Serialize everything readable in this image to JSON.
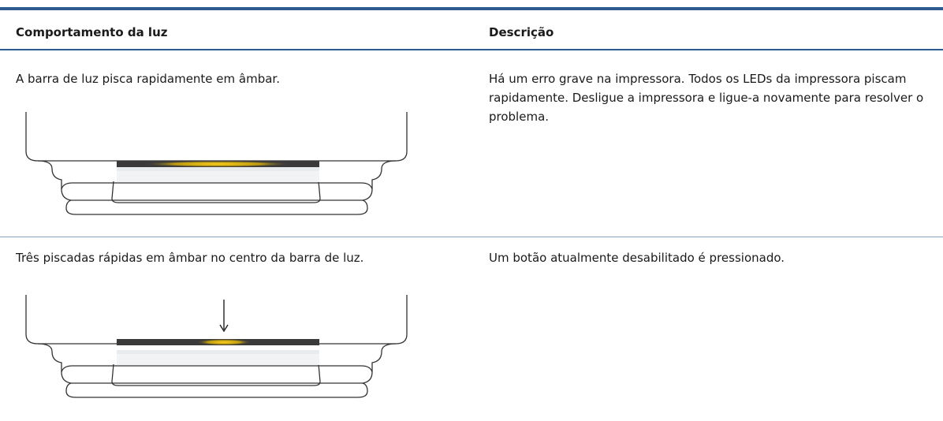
{
  "table": {
    "columns": [
      "Comportamento da luz",
      "Descrição"
    ],
    "rows": [
      [
        "A barra de luz pisca rapidamente em âmbar.",
        "Há um erro grave na impressora. Todos os LEDs da impressora piscam rapidamente. Desligue a impressora e ligue-a novamente para resolver o problema."
      ],
      [
        "Três piscadas rápidas em âmbar no centro da barra de luz.",
        "Um botão atualmente desabilitado é pressionado."
      ]
    ]
  }
}
